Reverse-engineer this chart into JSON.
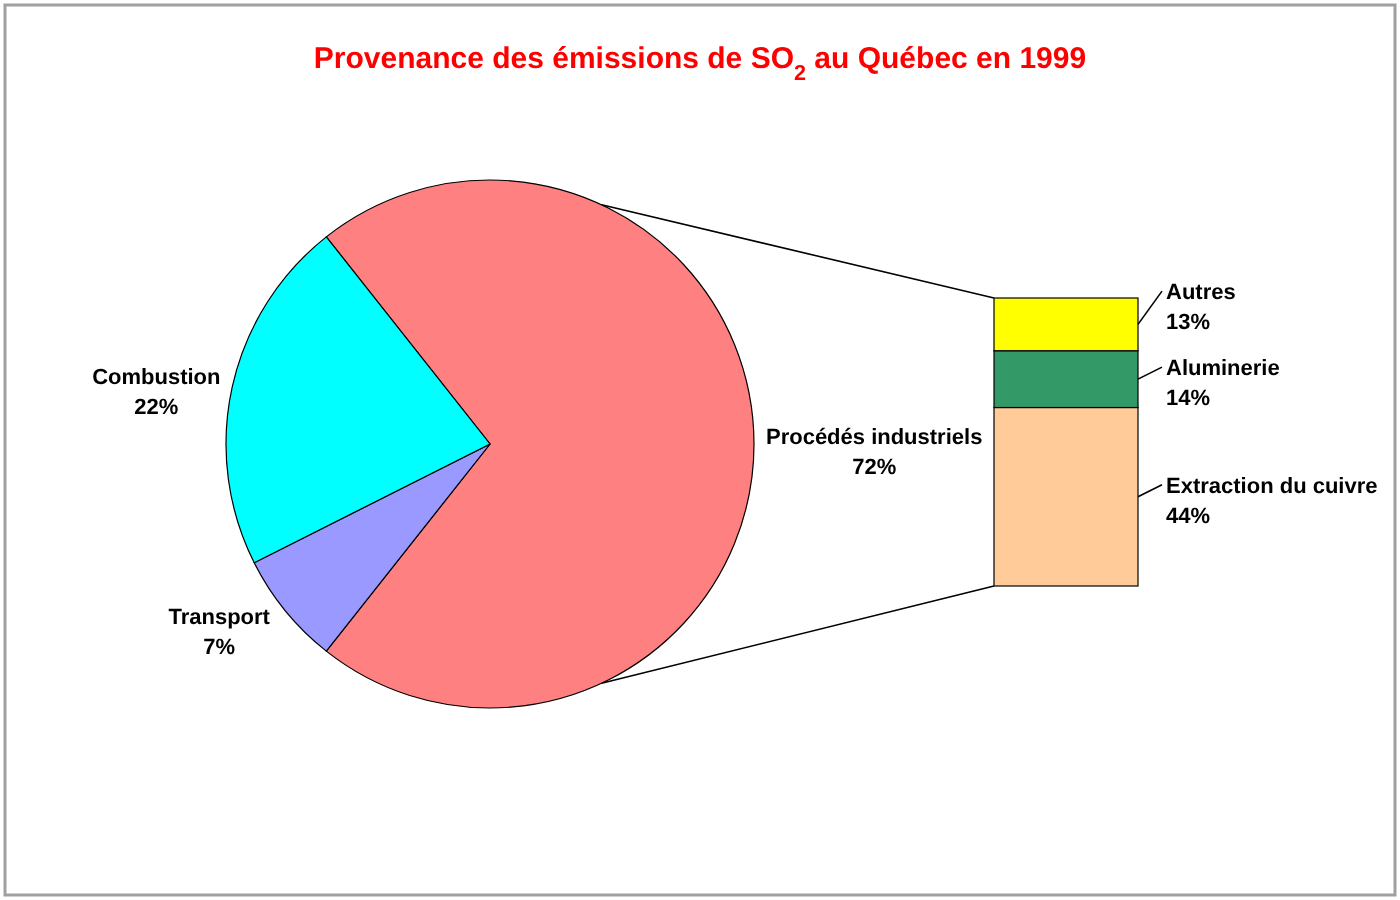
{
  "chart_data": [
    {
      "type": "pie",
      "title": "Provenance des émissions de SO$_{2}$ au Québec en 1999",
      "categories": [
        "Procédés industriels",
        "Transport",
        "Combustion"
      ],
      "values": [
        72,
        7,
        22
      ],
      "colors": [
        "#ff8080",
        "#9999ff",
        "#00ffff"
      ],
      "value_labels": [
        "72%",
        "7%",
        "22%"
      ]
    },
    {
      "type": "bar",
      "stacked": true,
      "categories": [
        null
      ],
      "series": [
        {
          "name": "Extraction du cuivre",
          "color": "#ffcc99",
          "values": [
            44
          ],
          "value_labels": [
            "44%"
          ]
        },
        {
          "name": "Aluminerie",
          "color": "#339966",
          "values": [
            14
          ],
          "value_labels": [
            "14%"
          ]
        },
        {
          "name": "Autres",
          "color": "#ffff00",
          "values": [
            13
          ],
          "value_labels": [
            "13%"
          ]
        }
      ]
    }
  ]
}
